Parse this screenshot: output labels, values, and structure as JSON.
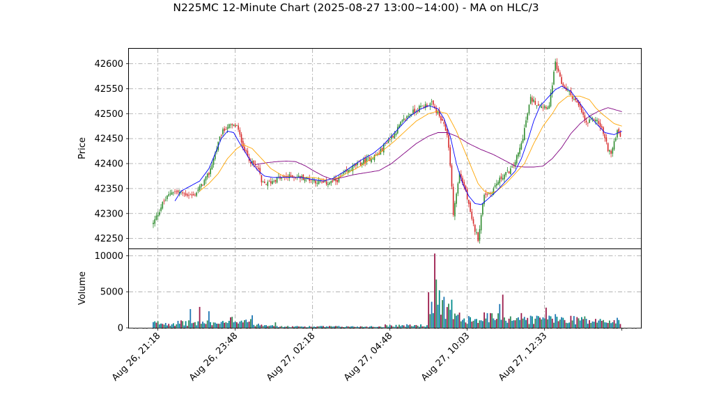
{
  "chart_data": {
    "type": "candlestick",
    "title": "N225MC 12-Minute Chart (2025-08-27 13:00~14:00) - MA on HLC/3",
    "price_panel": {
      "ylabel": "Price",
      "ylim": [
        42230,
        42630
      ],
      "yticks": [
        42250,
        42300,
        42350,
        42400,
        42450,
        42500,
        42550,
        42600
      ],
      "grid": true
    },
    "volume_panel": {
      "ylabel": "Volume",
      "ylim": [
        0,
        11000
      ],
      "yticks": [
        0,
        5000,
        10000
      ],
      "grid": true
    },
    "x_tick_labels": [
      "Aug 26, 21:18",
      "Aug 26, 23:48",
      "Aug 27, 02:18",
      "Aug 27, 04:48",
      "Aug 27, 10:03",
      "Aug 27, 12:33"
    ],
    "x_tick_positions": [
      3,
      53,
      103,
      153,
      203,
      253
    ],
    "n_bars": 303,
    "up_color": "#2e8b2e",
    "down_color": "#d62728",
    "volume_colors": [
      "#1f77b4",
      "#008b8b",
      "#9b1b4b",
      "#2e8b57"
    ],
    "ma_colors": {
      "fast": "#0000ff",
      "medium": "#ffa500",
      "slow": "#800080"
    },
    "close_path": [
      [
        0,
        42280
      ],
      [
        6,
        42320
      ],
      [
        12,
        42345
      ],
      [
        20,
        42340
      ],
      [
        26,
        42335
      ],
      [
        32,
        42360
      ],
      [
        36,
        42380
      ],
      [
        40,
        42420
      ],
      [
        44,
        42460
      ],
      [
        48,
        42475
      ],
      [
        54,
        42475
      ],
      [
        56,
        42455
      ],
      [
        60,
        42420
      ],
      [
        64,
        42400
      ],
      [
        68,
        42390
      ],
      [
        70,
        42360
      ],
      [
        74,
        42360
      ],
      [
        80,
        42370
      ],
      [
        90,
        42375
      ],
      [
        100,
        42370
      ],
      [
        110,
        42360
      ],
      [
        118,
        42365
      ],
      [
        124,
        42380
      ],
      [
        130,
        42395
      ],
      [
        140,
        42410
      ],
      [
        146,
        42420
      ],
      [
        150,
        42440
      ],
      [
        156,
        42460
      ],
      [
        160,
        42480
      ],
      [
        166,
        42500
      ],
      [
        174,
        42515
      ],
      [
        180,
        42520
      ],
      [
        184,
        42500
      ],
      [
        188,
        42475
      ],
      [
        190,
        42460
      ],
      [
        192,
        42400
      ],
      [
        194,
        42300
      ],
      [
        198,
        42380
      ],
      [
        202,
        42345
      ],
      [
        206,
        42285
      ],
      [
        210,
        42250
      ],
      [
        214,
        42340
      ],
      [
        218,
        42340
      ],
      [
        222,
        42360
      ],
      [
        226,
        42375
      ],
      [
        232,
        42390
      ],
      [
        236,
        42420
      ],
      [
        238,
        42440
      ],
      [
        240,
        42470
      ],
      [
        244,
        42530
      ],
      [
        248,
        42520
      ],
      [
        252,
        42515
      ],
      [
        256,
        42515
      ],
      [
        258,
        42560
      ],
      [
        260,
        42600
      ],
      [
        264,
        42560
      ],
      [
        268,
        42545
      ],
      [
        272,
        42530
      ],
      [
        276,
        42510
      ],
      [
        280,
        42480
      ],
      [
        286,
        42490
      ],
      [
        290,
        42470
      ],
      [
        294,
        42430
      ],
      [
        296,
        42420
      ],
      [
        298,
        42440
      ],
      [
        300,
        42470
      ],
      [
        303,
        42450
      ]
    ],
    "ma_fast_path": [
      [
        14,
        42325
      ],
      [
        18,
        42345
      ],
      [
        24,
        42355
      ],
      [
        30,
        42365
      ],
      [
        36,
        42390
      ],
      [
        40,
        42420
      ],
      [
        44,
        42450
      ],
      [
        48,
        42465
      ],
      [
        52,
        42462
      ],
      [
        56,
        42440
      ],
      [
        60,
        42420
      ],
      [
        64,
        42400
      ],
      [
        68,
        42385
      ],
      [
        72,
        42375
      ],
      [
        78,
        42372
      ],
      [
        86,
        42373
      ],
      [
        96,
        42372
      ],
      [
        104,
        42368
      ],
      [
        110,
        42365
      ],
      [
        116,
        42370
      ],
      [
        124,
        42385
      ],
      [
        130,
        42398
      ],
      [
        136,
        42410
      ],
      [
        142,
        42420
      ],
      [
        148,
        42435
      ],
      [
        154,
        42455
      ],
      [
        160,
        42475
      ],
      [
        166,
        42495
      ],
      [
        172,
        42508
      ],
      [
        178,
        42516
      ],
      [
        184,
        42510
      ],
      [
        188,
        42490
      ],
      [
        192,
        42455
      ],
      [
        196,
        42400
      ],
      [
        200,
        42360
      ],
      [
        204,
        42335
      ],
      [
        208,
        42320
      ],
      [
        212,
        42318
      ],
      [
        216,
        42328
      ],
      [
        222,
        42345
      ],
      [
        228,
        42365
      ],
      [
        234,
        42385
      ],
      [
        238,
        42410
      ],
      [
        242,
        42445
      ],
      [
        246,
        42485
      ],
      [
        250,
        42515
      ],
      [
        256,
        42535
      ],
      [
        260,
        42548
      ],
      [
        264,
        42555
      ],
      [
        270,
        42545
      ],
      [
        276,
        42520
      ],
      [
        282,
        42495
      ],
      [
        288,
        42475
      ],
      [
        292,
        42462
      ],
      [
        298,
        42458
      ],
      [
        303,
        42465
      ]
    ],
    "ma_medium_path": [
      [
        30,
        42345
      ],
      [
        36,
        42360
      ],
      [
        42,
        42380
      ],
      [
        48,
        42410
      ],
      [
        54,
        42430
      ],
      [
        58,
        42438
      ],
      [
        64,
        42430
      ],
      [
        70,
        42410
      ],
      [
        76,
        42390
      ],
      [
        84,
        42375
      ],
      [
        94,
        42372
      ],
      [
        104,
        42372
      ],
      [
        112,
        42367
      ],
      [
        120,
        42372
      ],
      [
        126,
        42382
      ],
      [
        134,
        42395
      ],
      [
        142,
        42412
      ],
      [
        148,
        42425
      ],
      [
        156,
        42445
      ],
      [
        164,
        42468
      ],
      [
        170,
        42485
      ],
      [
        178,
        42500
      ],
      [
        184,
        42505
      ],
      [
        190,
        42500
      ],
      [
        196,
        42465
      ],
      [
        202,
        42420
      ],
      [
        206,
        42390
      ],
      [
        210,
        42360
      ],
      [
        214,
        42345
      ],
      [
        218,
        42340
      ],
      [
        222,
        42345
      ],
      [
        228,
        42360
      ],
      [
        234,
        42380
      ],
      [
        240,
        42400
      ],
      [
        246,
        42440
      ],
      [
        252,
        42475
      ],
      [
        258,
        42500
      ],
      [
        262,
        42520
      ],
      [
        268,
        42535
      ],
      [
        276,
        42535
      ],
      [
        282,
        42528
      ],
      [
        286,
        42512
      ],
      [
        290,
        42500
      ],
      [
        294,
        42490
      ],
      [
        298,
        42480
      ],
      [
        303,
        42475
      ]
    ],
    "ma_slow_path": [
      [
        66,
        42398
      ],
      [
        74,
        42402
      ],
      [
        80,
        42404
      ],
      [
        86,
        42405
      ],
      [
        92,
        42404
      ],
      [
        98,
        42396
      ],
      [
        104,
        42385
      ],
      [
        110,
        42375
      ],
      [
        116,
        42368
      ],
      [
        122,
        42372
      ],
      [
        130,
        42378
      ],
      [
        138,
        42382
      ],
      [
        146,
        42386
      ],
      [
        154,
        42400
      ],
      [
        162,
        42420
      ],
      [
        170,
        42440
      ],
      [
        178,
        42455
      ],
      [
        184,
        42462
      ],
      [
        190,
        42462
      ],
      [
        196,
        42455
      ],
      [
        204,
        42440
      ],
      [
        212,
        42428
      ],
      [
        220,
        42418
      ],
      [
        228,
        42405
      ],
      [
        234,
        42395
      ],
      [
        240,
        42393
      ],
      [
        246,
        42393
      ],
      [
        252,
        42395
      ],
      [
        258,
        42410
      ],
      [
        264,
        42432
      ],
      [
        270,
        42460
      ],
      [
        276,
        42480
      ],
      [
        282,
        42495
      ],
      [
        288,
        42505
      ],
      [
        294,
        42512
      ],
      [
        303,
        42504
      ]
    ]
  }
}
